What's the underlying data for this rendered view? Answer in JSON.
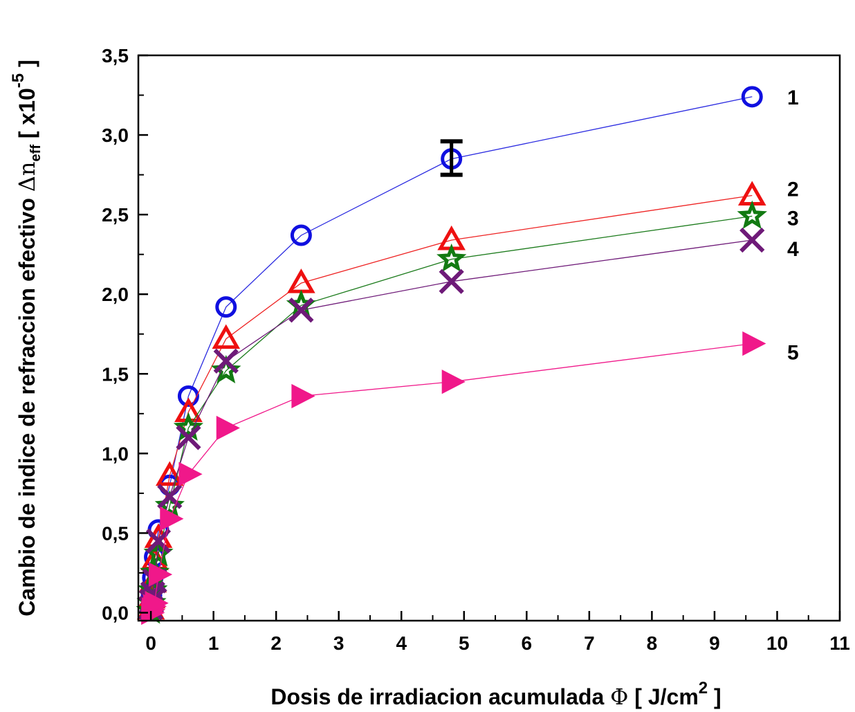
{
  "chart_data": {
    "type": "line",
    "xlabel_main": "Dosis de irradiacion acumulada ",
    "xlabel_symbol": "Φ",
    "xlabel_unit_open": " [ J/cm",
    "xlabel_unit_sup": "2",
    "xlabel_unit_close": " ]",
    "ylabel_main": "Cambio de indice de refraccion efectivo ",
    "ylabel_symbol": "Δn",
    "ylabel_sub": "eff",
    "ylabel_unit_open": " [ x10",
    "ylabel_unit_sup": "-5",
    "ylabel_unit_close": " ]",
    "xlim": [
      -0.2,
      11
    ],
    "ylim": [
      -0.05,
      3.5
    ],
    "x_ticks": [
      0,
      1,
      2,
      3,
      4,
      5,
      6,
      7,
      8,
      9,
      10,
      11
    ],
    "x_tick_labels": [
      "0",
      "1",
      "2",
      "3",
      "4",
      "5",
      "6",
      "7",
      "8",
      "9",
      "10",
      "11"
    ],
    "y_ticks": [
      0,
      0.5,
      1,
      1.5,
      2,
      2.5,
      3,
      3.5
    ],
    "y_tick_labels": [
      "0,0",
      "0,5",
      "1,0",
      "1,5",
      "2,0",
      "2,5",
      "3,0",
      "3,5"
    ],
    "x": [
      0,
      0.01,
      0.03,
      0.06,
      0.12,
      0.3,
      0.6,
      1.2,
      2.4,
      4.8,
      9.6
    ],
    "series": [
      {
        "name": "1",
        "marker": "circle",
        "color": "#1010e0",
        "line_color": "#2a2ae0",
        "values": [
          0.02,
          0.11,
          0.22,
          0.35,
          0.52,
          0.8,
          1.36,
          1.92,
          2.37,
          2.85,
          3.24
        ],
        "error_bar": {
          "index": 9,
          "low": 2.75,
          "high": 2.96
        }
      },
      {
        "name": "2",
        "marker": "triangle",
        "color": "#ee1010",
        "line_color": "#ee2222",
        "values": [
          0.02,
          0.09,
          0.19,
          0.33,
          0.47,
          0.86,
          1.26,
          1.72,
          2.07,
          2.34,
          2.62
        ]
      },
      {
        "name": "3",
        "marker": "star",
        "color": "#127a12",
        "line_color": "#1a7a1a",
        "values": [
          0.01,
          0.06,
          0.14,
          0.25,
          0.37,
          0.67,
          1.16,
          1.52,
          1.93,
          2.22,
          2.49
        ]
      },
      {
        "name": "4",
        "marker": "x",
        "color": "#6e1a78",
        "line_color": "#6e1a78",
        "values": [
          0.03,
          0.07,
          0.12,
          0.2,
          0.45,
          0.73,
          1.1,
          1.58,
          1.9,
          2.08,
          2.34
        ]
      },
      {
        "name": "5",
        "marker": "triangle-right",
        "color": "#f0188a",
        "line_color": "#f0188a",
        "values": [
          0.0,
          0.02,
          0.04,
          0.06,
          0.24,
          0.59,
          0.87,
          1.16,
          1.36,
          1.45,
          1.69
        ]
      }
    ]
  }
}
